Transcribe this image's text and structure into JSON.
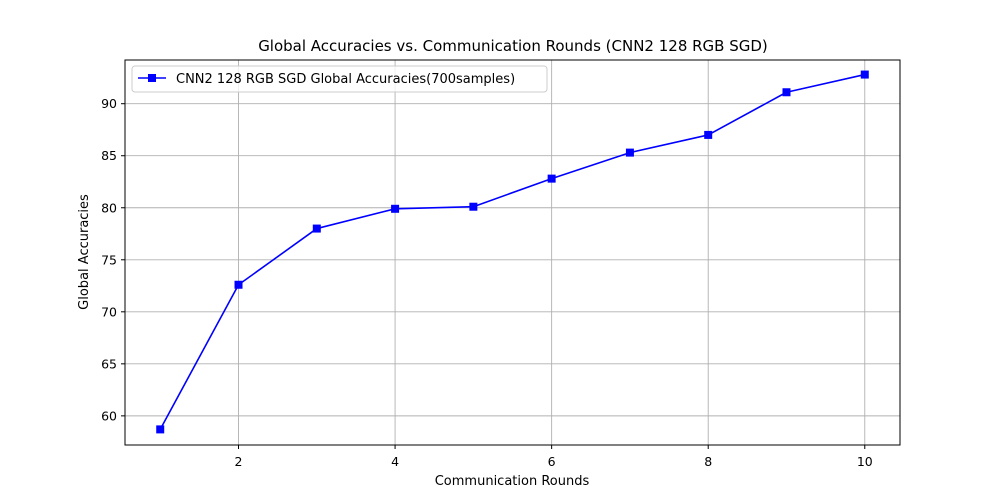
{
  "chart_data": {
    "type": "line",
    "title": "Global Accuracies vs. Communication Rounds (CNN2 128 RGB SGD)",
    "xlabel": "Communication Rounds",
    "ylabel": "Global Accuracies",
    "xlim": [
      0.55,
      10.45
    ],
    "ylim": [
      57.2,
      94.2
    ],
    "xticks": [
      2,
      4,
      6,
      8,
      10
    ],
    "yticks": [
      60,
      65,
      70,
      75,
      80,
      85,
      90
    ],
    "grid": true,
    "legend_position": "top-left",
    "series": [
      {
        "name": "CNN2 128 RGB SGD Global Accuracies(700samples)",
        "color": "#0000ff",
        "marker": "square",
        "x": [
          1,
          2,
          3,
          4,
          5,
          6,
          7,
          8,
          9,
          10
        ],
        "y": [
          58.7,
          72.6,
          78.0,
          79.9,
          80.1,
          82.8,
          85.3,
          87.0,
          91.1,
          92.8
        ]
      }
    ]
  }
}
